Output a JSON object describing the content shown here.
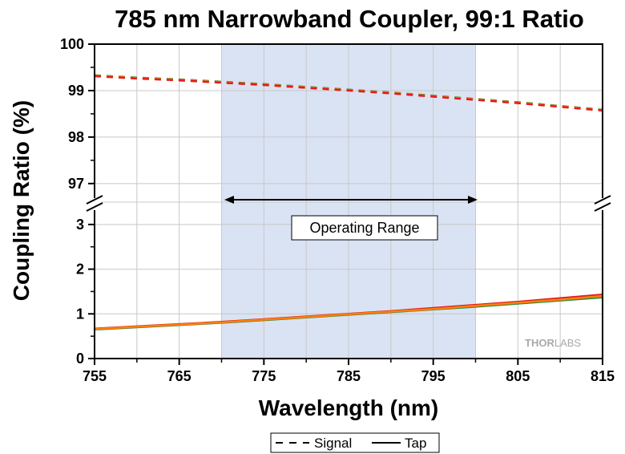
{
  "chart_data": {
    "type": "line",
    "title": "785 nm Narrowband Coupler, 99:1 Ratio",
    "xlabel": "Wavelength (nm)",
    "ylabel": "Coupling Ratio (%)",
    "xlim": [
      755,
      815
    ],
    "x_ticks": [
      "755",
      "765",
      "775",
      "785",
      "795",
      "805",
      "815"
    ],
    "y_axis_break": true,
    "upper_panel": {
      "ylim": [
        96.6,
        100
      ],
      "y_ticks": [
        "97",
        "98",
        "99",
        "100"
      ]
    },
    "lower_panel": {
      "ylim": [
        0,
        3.5
      ],
      "y_ticks": [
        "0",
        "1",
        "2",
        "3"
      ]
    },
    "grid": true,
    "highlight_region": {
      "x": [
        770,
        800
      ],
      "label": "Operating Range"
    },
    "legend": {
      "position": "bottom-center",
      "entries": [
        "Signal",
        "Tap"
      ]
    },
    "x": [
      755,
      760,
      765,
      770,
      775,
      780,
      785,
      790,
      795,
      800,
      805,
      810,
      815
    ],
    "series": [
      {
        "name": "Signal",
        "style": "dashed",
        "panel": "upper",
        "lines": [
          {
            "color": "#2e8b3a",
            "values": [
              99.33,
              99.28,
              99.24,
              99.19,
              99.14,
              99.08,
              99.02,
              98.96,
              98.89,
              98.82,
              98.75,
              98.67,
              98.59
            ]
          },
          {
            "color": "#ff7f0e",
            "values": [
              99.32,
              99.27,
              99.23,
              99.18,
              99.13,
              99.07,
              99.01,
              98.95,
              98.88,
              98.81,
              98.74,
              98.66,
              98.58
            ]
          },
          {
            "color": "#e31a1c",
            "values": [
              99.31,
              99.26,
              99.22,
              99.17,
              99.12,
              99.06,
              99.0,
              98.94,
              98.87,
              98.8,
              98.73,
              98.65,
              98.57
            ]
          }
        ]
      },
      {
        "name": "Tap",
        "style": "solid",
        "panel": "lower",
        "lines": [
          {
            "color": "#2e8b3a",
            "values": [
              0.65,
              0.7,
              0.75,
              0.8,
              0.86,
              0.92,
              0.98,
              1.04,
              1.1,
              1.16,
              1.23,
              1.3,
              1.37
            ]
          },
          {
            "color": "#e31a1c",
            "values": [
              0.67,
              0.72,
              0.77,
              0.82,
              0.88,
              0.94,
              1.0,
              1.06,
              1.13,
              1.2,
              1.27,
              1.35,
              1.43
            ]
          },
          {
            "color": "#ff7f0e",
            "values": [
              0.66,
              0.71,
              0.76,
              0.81,
              0.87,
              0.93,
              0.99,
              1.05,
              1.11,
              1.18,
              1.25,
              1.32,
              1.4
            ]
          }
        ]
      }
    ]
  },
  "watermark": {
    "brand_dark": "THOR",
    "brand_light": "LABS"
  },
  "colors": {
    "highlight_fill": "#dae3f3",
    "grid": "#c8c8c8"
  }
}
